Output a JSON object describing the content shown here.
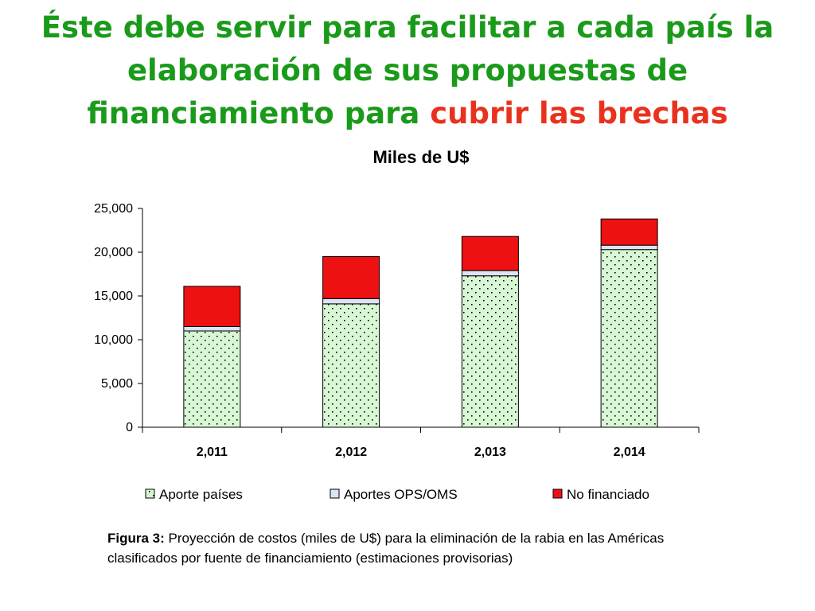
{
  "headline": {
    "part1": "Éste debe servir para facilitar a cada país la elaboración de sus propuestas de financiamiento para ",
    "part2": "cubrir las brechas"
  },
  "colors": {
    "headline_green": "#1a9a1a",
    "headline_red": "#e8321e",
    "aporte_paises_fill": "#d8f7d4",
    "aporte_paises_dots": "#000000",
    "aportes_ops_fill": "#dbe4f7",
    "no_financiado_fill": "#ee1111"
  },
  "chart_data": {
    "type": "bar",
    "stacked": true,
    "title": "Miles de U$",
    "xlabel": "",
    "ylabel": "",
    "categories": [
      "2,011",
      "2,012",
      "2,013",
      "2,014"
    ],
    "series": [
      {
        "name": "Aporte países",
        "values": [
          11000,
          14100,
          17300,
          20300
        ]
      },
      {
        "name": "Aportes OPS/OMS",
        "values": [
          500,
          600,
          600,
          500
        ]
      },
      {
        "name": "No financiado",
        "values": [
          4600,
          4800,
          3900,
          3000
        ]
      }
    ],
    "ylim": [
      0,
      25000
    ],
    "yticks": [
      0,
      5000,
      10000,
      15000,
      20000,
      25000
    ],
    "ytick_labels": [
      "0",
      "5,000",
      "10,000",
      "15,000",
      "20,000",
      "25,000"
    ],
    "grid": false,
    "legend": "bottom"
  },
  "caption": {
    "label": "Figura 3:",
    "text": "  Proyección de costos (miles de U$) para la eliminación de la rabia en las Américas clasificados por fuente de financiamiento (estimaciones provisorias)"
  }
}
